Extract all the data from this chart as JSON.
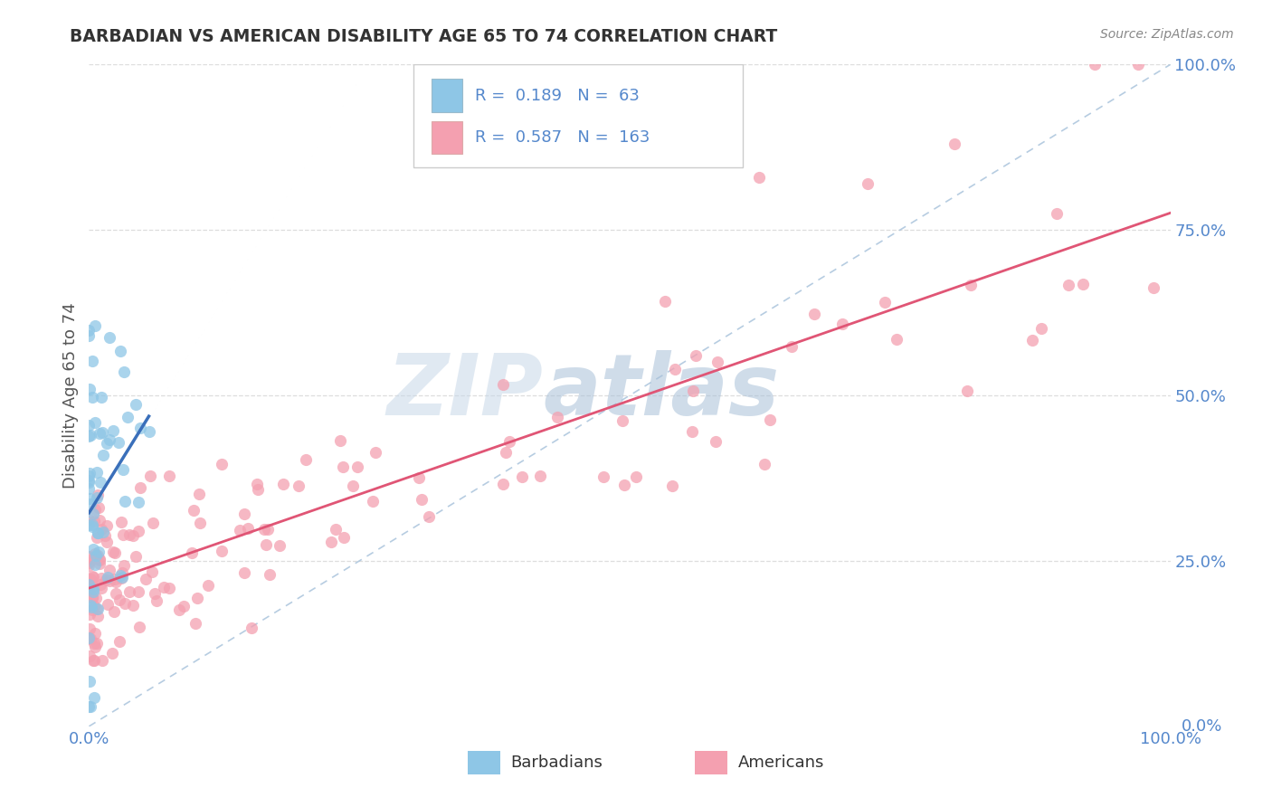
{
  "title": "BARBADIAN VS AMERICAN DISABILITY AGE 65 TO 74 CORRELATION CHART",
  "source": "Source: ZipAtlas.com",
  "ylabel": "Disability Age 65 to 74",
  "legend_label1": "Barbadians",
  "legend_label2": "Americans",
  "legend_r1": "0.189",
  "legend_n1": "63",
  "legend_r2": "0.587",
  "legend_n2": "163",
  "color_barbadian": "#8ec6e6",
  "color_american": "#f4a0b0",
  "color_trendline_barbadian": "#3a6fba",
  "color_trendline_american": "#e05575",
  "color_diagonal": "#aac4dc",
  "watermark_zip": "ZIP",
  "watermark_atlas": "atlas",
  "watermark_color_zip": "#c8d8e8",
  "watermark_color_atlas": "#a8c0d8",
  "background_color": "#ffffff",
  "grid_color": "#dddddd",
  "tick_color": "#5588cc",
  "title_color": "#333333",
  "ylabel_color": "#555555",
  "source_color": "#888888"
}
